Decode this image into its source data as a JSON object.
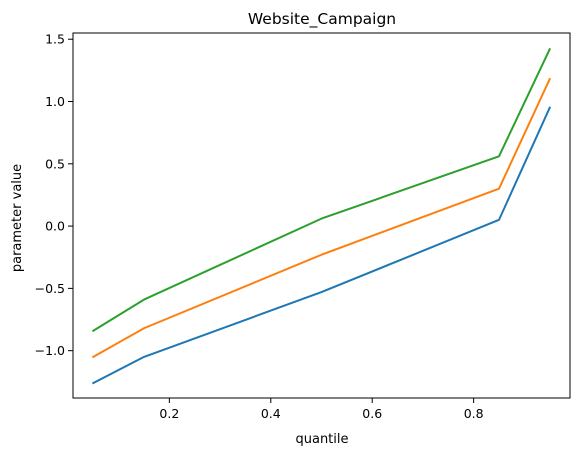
{
  "chart_data": {
    "type": "line",
    "title": "Website_Campaign",
    "xlabel": "quantile",
    "ylabel": "parameter value",
    "x": [
      0.05,
      0.15,
      0.5,
      0.85,
      0.95
    ],
    "xlim": [
      0.01,
      0.99
    ],
    "ylim": [
      -1.38,
      1.55
    ],
    "xticks": [
      0.2,
      0.4,
      0.6,
      0.8
    ],
    "xtick_labels": [
      "0.2",
      "0.4",
      "0.6",
      "0.8"
    ],
    "yticks": [
      -1.0,
      -0.5,
      0.0,
      0.5,
      1.0,
      1.5
    ],
    "ytick_labels": [
      "−1.0",
      "−0.5",
      "0.0",
      "0.5",
      "1.0",
      "1.5"
    ],
    "grid": false,
    "series": [
      {
        "color": "#1f77b4",
        "values": [
          -1.26,
          -1.05,
          -0.53,
          0.05,
          0.95
        ]
      },
      {
        "color": "#ff7f0e",
        "values": [
          -1.05,
          -0.82,
          -0.23,
          0.3,
          1.18
        ]
      },
      {
        "color": "#2ca02c",
        "values": [
          -0.84,
          -0.59,
          0.06,
          0.56,
          1.42
        ]
      }
    ]
  }
}
